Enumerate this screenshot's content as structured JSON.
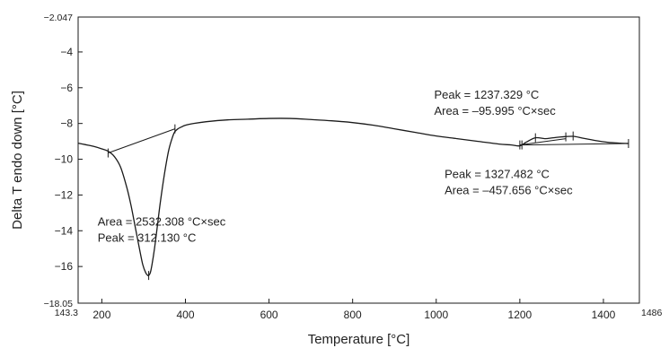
{
  "chart_data": {
    "type": "line",
    "title": "",
    "xlabel": "Temperature [°C]",
    "ylabel": "Delta T endo down [°C]",
    "xlim": [
      143.3,
      1486
    ],
    "ylim": [
      -18.05,
      -2.047
    ],
    "x_ticks": [
      200,
      400,
      600,
      800,
      1000,
      1200,
      1400
    ],
    "y_ticks": [
      -4,
      -6,
      -8,
      -10,
      -12,
      -14,
      -16
    ],
    "x_end_labels": [
      "143.3",
      "1486"
    ],
    "y_end_labels": [
      "-2.047",
      "-18.05"
    ],
    "grid": false,
    "legend": "none",
    "series": [
      {
        "x": [
          143.3,
          160,
          180,
          200,
          215,
          230,
          245,
          260,
          270,
          280,
          290,
          298,
          305,
          310,
          312.13,
          316,
          320,
          326,
          332,
          340,
          350,
          360,
          370,
          375,
          382,
          390,
          400,
          420,
          450,
          500,
          550,
          600,
          650,
          700,
          750,
          800,
          850,
          900,
          950,
          1000,
          1050,
          1100,
          1150,
          1180,
          1200,
          1215,
          1237.33,
          1260,
          1280,
          1300,
          1327.48,
          1350,
          1380,
          1410,
          1440,
          1460
        ],
        "y": [
          -9.1,
          -9.18,
          -9.28,
          -9.42,
          -9.55,
          -9.85,
          -10.45,
          -11.6,
          -12.6,
          -13.8,
          -15.0,
          -15.9,
          -16.35,
          -16.5,
          -16.5,
          -16.35,
          -15.9,
          -15.0,
          -13.9,
          -12.4,
          -10.8,
          -9.5,
          -8.7,
          -8.45,
          -8.3,
          -8.2,
          -8.1,
          -8.0,
          -7.9,
          -7.8,
          -7.76,
          -7.72,
          -7.72,
          -7.78,
          -7.85,
          -7.95,
          -8.1,
          -8.3,
          -8.5,
          -8.7,
          -8.85,
          -9.0,
          -9.15,
          -9.2,
          -9.25,
          -9.05,
          -8.8,
          -8.85,
          -8.8,
          -8.75,
          -8.72,
          -8.82,
          -8.95,
          -9.05,
          -9.1,
          -9.12
        ]
      }
    ],
    "baselines": [
      {
        "x": [
          215,
          375
        ],
        "y": [
          -9.65,
          -8.3
        ]
      },
      {
        "x": [
          1200,
          1310
        ],
        "y": [
          -9.2,
          -8.85
        ]
      },
      {
        "x": [
          1205,
          1460
        ],
        "y": [
          -9.2,
          -9.12
        ]
      }
    ],
    "markers": [
      {
        "x": 215,
        "y": -9.65
      },
      {
        "x": 312.13,
        "y": -16.5
      },
      {
        "x": 375,
        "y": -8.3
      },
      {
        "x": 1200,
        "y": -9.2
      },
      {
        "x": 1205,
        "y": -9.2
      },
      {
        "x": 1237.33,
        "y": -8.8
      },
      {
        "x": 1310,
        "y": -8.75
      },
      {
        "x": 1327.48,
        "y": -8.7
      },
      {
        "x": 1460,
        "y": -9.12
      }
    ],
    "annotations": [
      {
        "lines": [
          "Area = 2532.308 °C×sec",
          "Peak = 312.130 °C"
        ],
        "anchor_x": 190,
        "anchor_y": -13.7
      },
      {
        "lines": [
          "Peak = 1237.329 °C",
          "Area = –95.995 °C×sec"
        ],
        "anchor_x": 995,
        "anchor_y": -6.6
      },
      {
        "lines": [
          "Peak = 1327.482 °C",
          "Area = –457.656 °C×sec"
        ],
        "anchor_x": 1020,
        "anchor_y": -11.05
      }
    ]
  }
}
